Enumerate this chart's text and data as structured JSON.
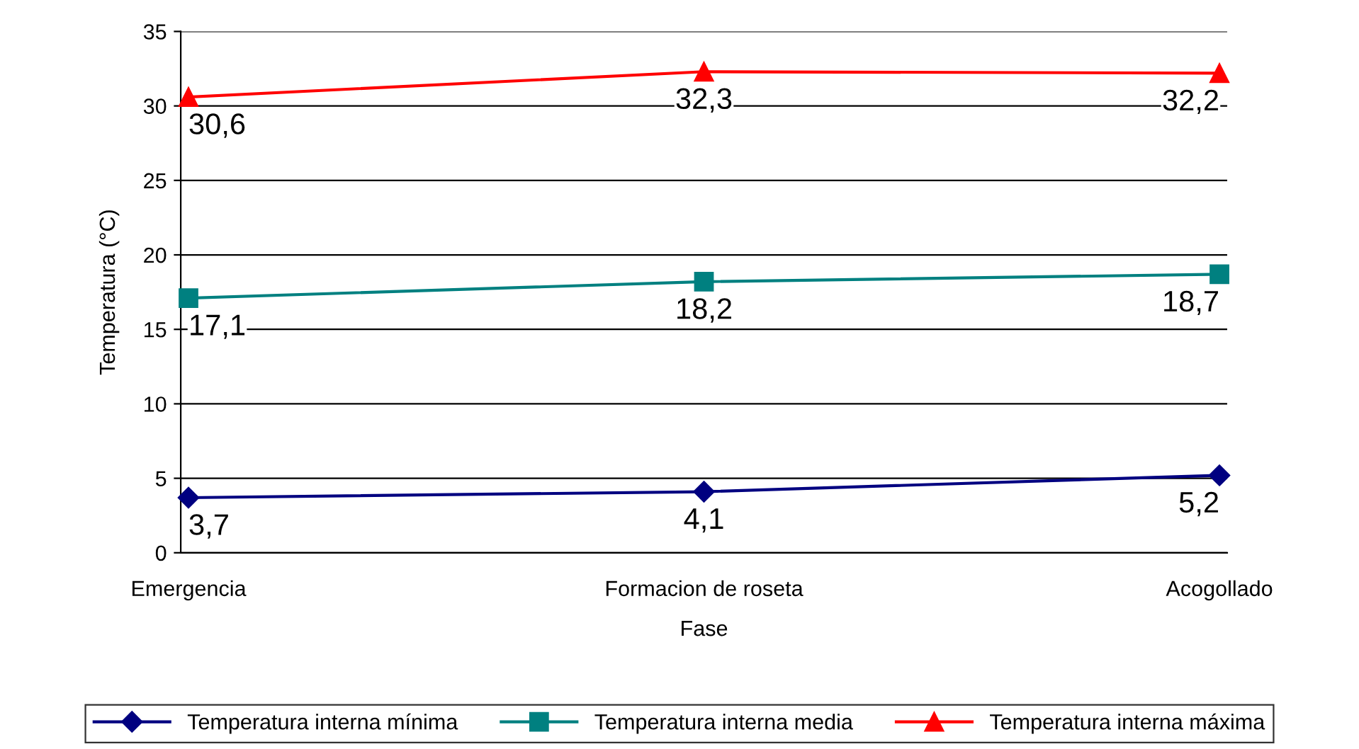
{
  "chart_data": {
    "type": "line",
    "xlabel": "Fase",
    "ylabel": "Temperatura (°C)",
    "categories": [
      "Emergencia",
      "Formacion de roseta",
      "Acogollado"
    ],
    "series": [
      {
        "name": "Temperatura interna mínima",
        "color": "#000080",
        "marker": "diamond",
        "values": [
          3.7,
          4.1,
          5.2
        ],
        "value_labels": [
          "3,7",
          "4,1",
          "5,2"
        ]
      },
      {
        "name": "Temperatura interna media",
        "color": "#008080",
        "marker": "square",
        "values": [
          17.1,
          18.2,
          18.7
        ],
        "value_labels": [
          "17,1",
          "18,2",
          "18,7"
        ]
      },
      {
        "name": "Temperatura interna máxima",
        "color": "#ff0000",
        "marker": "triangle",
        "values": [
          30.6,
          32.3,
          32.2
        ],
        "value_labels": [
          "30,6",
          "32,3",
          "32,2"
        ]
      }
    ],
    "ylim": [
      0,
      35
    ],
    "yticks": [
      0,
      5,
      10,
      15,
      20,
      25,
      30,
      35
    ],
    "grid": "y",
    "legend": "bottom",
    "line_style": "solid"
  }
}
